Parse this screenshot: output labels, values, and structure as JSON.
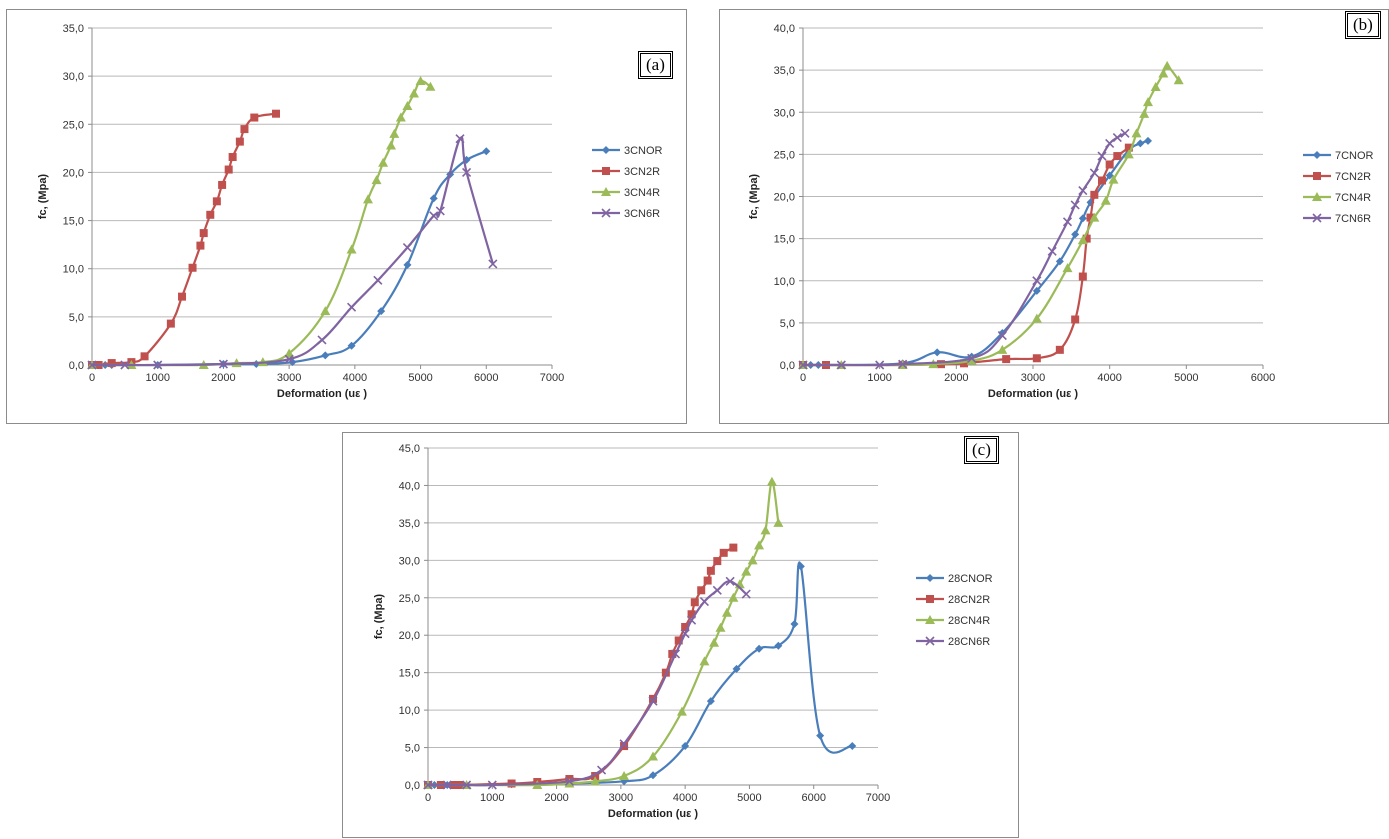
{
  "chart_data": [
    {
      "type": "line",
      "panel_label": "(a)",
      "xlabel": "Deformation (uε )",
      "ylabel": "fc, (Mpa)",
      "xlim": [
        0,
        7000
      ],
      "ylim": [
        0,
        35
      ],
      "xticks": [
        "0",
        "1000",
        "2000",
        "3000",
        "4000",
        "5000",
        "6000",
        "7000"
      ],
      "yticks": [
        "0,0",
        "5,0",
        "10,0",
        "15,0",
        "20,0",
        "25,0",
        "30,0",
        "35,0"
      ],
      "grid": "horizontal",
      "legend": "right",
      "series": [
        {
          "name": "3CNOR",
          "color": "#4a7ebb",
          "marker": "diamond",
          "points": [
            [
              0,
              0
            ],
            [
              100,
              0
            ],
            [
              200,
              0
            ],
            [
              300,
              0
            ],
            [
              1000,
              0
            ],
            [
              2000,
              0.1
            ],
            [
              2500,
              0.1
            ],
            [
              3050,
              0.3
            ],
            [
              3550,
              1.0
            ],
            [
              3950,
              2.0
            ],
            [
              4400,
              5.6
            ],
            [
              4800,
              10.4
            ],
            [
              5200,
              17.3
            ],
            [
              5450,
              19.8
            ],
            [
              5700,
              21.3
            ],
            [
              6000,
              22.2
            ]
          ]
        },
        {
          "name": "3CN2R",
          "color": "#c0504d",
          "marker": "square",
          "points": [
            [
              0,
              0
            ],
            [
              100,
              0
            ],
            [
              300,
              0.2
            ],
            [
              600,
              0.3
            ],
            [
              800,
              0.9
            ],
            [
              1200,
              4.3
            ],
            [
              1370,
              7.1
            ],
            [
              1530,
              10.1
            ],
            [
              1650,
              12.4
            ],
            [
              1700,
              13.7
            ],
            [
              1800,
              15.6
            ],
            [
              1900,
              17.0
            ],
            [
              1980,
              18.7
            ],
            [
              2080,
              20.3
            ],
            [
              2140,
              21.6
            ],
            [
              2250,
              23.2
            ],
            [
              2320,
              24.5
            ],
            [
              2470,
              25.7
            ],
            [
              2800,
              26.1
            ]
          ]
        },
        {
          "name": "3CN4R",
          "color": "#9bbb59",
          "marker": "triangle",
          "points": [
            [
              0,
              0
            ],
            [
              600,
              0
            ],
            [
              1700,
              0
            ],
            [
              2200,
              0.2
            ],
            [
              2600,
              0.3
            ],
            [
              3000,
              1.2
            ],
            [
              3550,
              5.6
            ],
            [
              3950,
              12.0
            ],
            [
              4200,
              17.2
            ],
            [
              4330,
              19.2
            ],
            [
              4430,
              21.0
            ],
            [
              4550,
              22.8
            ],
            [
              4600,
              24.0
            ],
            [
              4700,
              25.7
            ],
            [
              4800,
              26.9
            ],
            [
              4900,
              28.2
            ],
            [
              5000,
              29.5
            ],
            [
              5150,
              28.9
            ]
          ]
        },
        {
          "name": "3CN6R",
          "color": "#8064a2",
          "marker": "x",
          "points": [
            [
              0,
              0
            ],
            [
              500,
              0
            ],
            [
              1000,
              0
            ],
            [
              2000,
              0.1
            ],
            [
              3000,
              0.6
            ],
            [
              3500,
              2.6
            ],
            [
              3950,
              6.0
            ],
            [
              4350,
              8.8
            ],
            [
              4800,
              12.2
            ],
            [
              5200,
              15.5
            ],
            [
              5300,
              16.0
            ],
            [
              5600,
              23.5
            ],
            [
              5700,
              20.0
            ],
            [
              6100,
              10.5
            ]
          ]
        }
      ]
    },
    {
      "type": "line",
      "panel_label": "(b)",
      "xlabel": "Deformation (uε )",
      "ylabel": "fc, (Mpa)",
      "xlim": [
        0,
        6000
      ],
      "ylim": [
        0,
        40
      ],
      "xticks": [
        "0",
        "1000",
        "2000",
        "3000",
        "4000",
        "5000",
        "6000"
      ],
      "yticks": [
        "0,0",
        "5,0",
        "10,0",
        "15,0",
        "20,0",
        "25,0",
        "30,0",
        "35,0",
        "40,0"
      ],
      "grid": "horizontal",
      "legend": "right",
      "series": [
        {
          "name": "7CNOR",
          "color": "#4a7ebb",
          "marker": "diamond",
          "points": [
            [
              0,
              0
            ],
            [
              100,
              0
            ],
            [
              200,
              0
            ],
            [
              300,
              0
            ],
            [
              1300,
              0.2
            ],
            [
              1750,
              1.5
            ],
            [
              2200,
              1.0
            ],
            [
              2600,
              3.8
            ],
            [
              3050,
              8.8
            ],
            [
              3350,
              12.3
            ],
            [
              3550,
              15.5
            ],
            [
              3650,
              17.4
            ],
            [
              3750,
              19.3
            ],
            [
              4000,
              22.5
            ],
            [
              4250,
              25.5
            ],
            [
              4400,
              26.3
            ],
            [
              4500,
              26.6
            ]
          ]
        },
        {
          "name": "7CN2R",
          "color": "#c0504d",
          "marker": "square",
          "points": [
            [
              0,
              0
            ],
            [
              300,
              0
            ],
            [
              1300,
              0
            ],
            [
              1800,
              0.1
            ],
            [
              2100,
              0.2
            ],
            [
              2650,
              0.7
            ],
            [
              3050,
              0.8
            ],
            [
              3350,
              1.8
            ],
            [
              3550,
              5.4
            ],
            [
              3650,
              10.5
            ],
            [
              3700,
              15.0
            ],
            [
              3750,
              17.5
            ],
            [
              3800,
              20.2
            ],
            [
              3900,
              21.9
            ],
            [
              4000,
              23.8
            ],
            [
              4100,
              24.8
            ],
            [
              4250,
              25.8
            ]
          ]
        },
        {
          "name": "7CN4R",
          "color": "#9bbb59",
          "marker": "triangle",
          "points": [
            [
              0,
              0
            ],
            [
              500,
              0
            ],
            [
              1300,
              0
            ],
            [
              1700,
              0.1
            ],
            [
              2200,
              0.5
            ],
            [
              2600,
              1.8
            ],
            [
              3050,
              5.5
            ],
            [
              3450,
              11.5
            ],
            [
              3650,
              14.8
            ],
            [
              3800,
              17.5
            ],
            [
              3950,
              19.5
            ],
            [
              4050,
              22.0
            ],
            [
              4250,
              25.0
            ],
            [
              4350,
              27.5
            ],
            [
              4450,
              29.8
            ],
            [
              4500,
              31.2
            ],
            [
              4600,
              33.0
            ],
            [
              4700,
              34.6
            ],
            [
              4750,
              35.5
            ],
            [
              4900,
              33.8
            ]
          ]
        },
        {
          "name": "7CN6R",
          "color": "#8064a2",
          "marker": "x",
          "points": [
            [
              0,
              0
            ],
            [
              500,
              0
            ],
            [
              1000,
              0
            ],
            [
              1300,
              0.1
            ],
            [
              2200,
              0.8
            ],
            [
              2600,
              3.5
            ],
            [
              3050,
              10.0
            ],
            [
              3250,
              13.5
            ],
            [
              3450,
              17.0
            ],
            [
              3550,
              19.0
            ],
            [
              3650,
              20.7
            ],
            [
              3800,
              22.8
            ],
            [
              3900,
              24.8
            ],
            [
              4000,
              26.3
            ],
            [
              4100,
              27.0
            ],
            [
              4200,
              27.5
            ]
          ]
        }
      ]
    },
    {
      "type": "line",
      "panel_label": "(c)",
      "xlabel": "Deformation (uε )",
      "ylabel": "fc, (Mpa)",
      "xlim": [
        0,
        7000
      ],
      "ylim": [
        0,
        45
      ],
      "xticks": [
        "0",
        "1000",
        "2000",
        "3000",
        "4000",
        "5000",
        "6000",
        "7000"
      ],
      "yticks": [
        "0,0",
        "5,0",
        "10,0",
        "15,0",
        "20,0",
        "25,0",
        "30,0",
        "35,0",
        "40,0",
        "45,0"
      ],
      "grid": "horizontal",
      "legend": "right",
      "series": [
        {
          "name": "28CNOR",
          "color": "#4a7ebb",
          "marker": "diamond",
          "points": [
            [
              0,
              0
            ],
            [
              100,
              0
            ],
            [
              200,
              0
            ],
            [
              300,
              0
            ],
            [
              1300,
              0.1
            ],
            [
              2200,
              0.2
            ],
            [
              3050,
              0.5
            ],
            [
              3500,
              1.3
            ],
            [
              4000,
              5.2
            ],
            [
              4400,
              11.2
            ],
            [
              4800,
              15.5
            ],
            [
              5150,
              18.2
            ],
            [
              5450,
              18.6
            ],
            [
              5700,
              21.5
            ],
            [
              5800,
              29.2
            ],
            [
              6100,
              6.6
            ],
            [
              6600,
              5.2
            ]
          ]
        },
        {
          "name": "28CN2R",
          "color": "#c0504d",
          "marker": "square",
          "points": [
            [
              0,
              0
            ],
            [
              200,
              0
            ],
            [
              400,
              0
            ],
            [
              500,
              0
            ],
            [
              1300,
              0.2
            ],
            [
              1700,
              0.4
            ],
            [
              2200,
              0.8
            ],
            [
              2600,
              1.2
            ],
            [
              3050,
              5.2
            ],
            [
              3500,
              11.5
            ],
            [
              3700,
              15.0
            ],
            [
              3800,
              17.5
            ],
            [
              3900,
              19.3
            ],
            [
              4000,
              21.1
            ],
            [
              4100,
              22.8
            ],
            [
              4150,
              24.4
            ],
            [
              4250,
              26.0
            ],
            [
              4350,
              27.3
            ],
            [
              4400,
              28.6
            ],
            [
              4500,
              29.9
            ],
            [
              4600,
              31.0
            ],
            [
              4750,
              31.7
            ]
          ]
        },
        {
          "name": "28CN4R",
          "color": "#9bbb59",
          "marker": "triangle",
          "points": [
            [
              0,
              0
            ],
            [
              600,
              0
            ],
            [
              1700,
              0
            ],
            [
              2200,
              0.2
            ],
            [
              2600,
              0.5
            ],
            [
              3050,
              1.2
            ],
            [
              3500,
              3.8
            ],
            [
              3950,
              9.8
            ],
            [
              4300,
              16.5
            ],
            [
              4450,
              19.0
            ],
            [
              4550,
              21.0
            ],
            [
              4650,
              23.0
            ],
            [
              4750,
              25.0
            ],
            [
              4850,
              26.8
            ],
            [
              4950,
              28.5
            ],
            [
              5050,
              30.0
            ],
            [
              5150,
              32.0
            ],
            [
              5250,
              34.0
            ],
            [
              5350,
              40.5
            ],
            [
              5450,
              35.0
            ]
          ]
        },
        {
          "name": "28CN6R",
          "color": "#8064a2",
          "marker": "x",
          "points": [
            [
              0,
              0
            ],
            [
              300,
              0
            ],
            [
              600,
              0
            ],
            [
              1000,
              0
            ],
            [
              2200,
              0.5
            ],
            [
              2700,
              2.0
            ],
            [
              3050,
              5.5
            ],
            [
              3500,
              11.2
            ],
            [
              3850,
              17.5
            ],
            [
              4000,
              20.2
            ],
            [
              4100,
              22.0
            ],
            [
              4300,
              24.5
            ],
            [
              4500,
              26.0
            ],
            [
              4700,
              27.2
            ],
            [
              4950,
              25.5
            ]
          ]
        }
      ]
    }
  ]
}
